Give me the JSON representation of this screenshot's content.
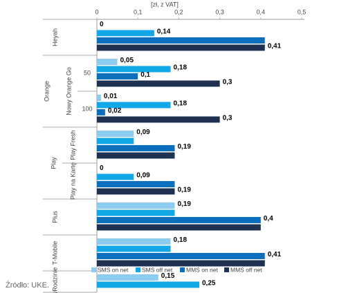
{
  "chart_data": {
    "type": "bar",
    "orientation": "horizontal",
    "x_label": "[zł, z VAT]",
    "categories": [
      "Heyah",
      "50",
      "100",
      "Play Fresh",
      "Play na Kartę",
      "Plus",
      "T-Mobile",
      "wRodzinie"
    ],
    "groups": [
      {
        "label": "Orange",
        "members": [
          1,
          2
        ]
      },
      {
        "label": "Nowy Orange Go",
        "members": [
          1,
          2
        ]
      },
      {
        "label": "Play",
        "members": [
          3,
          4
        ]
      }
    ],
    "series": [
      {
        "name": "SMS on net",
        "color": "#8ecbf0",
        "values": [
          0,
          0.05,
          0.01,
          0.09,
          0,
          0.19,
          0.18,
          0.15
        ],
        "value_labels": [
          "0",
          "0,05",
          "0,01",
          "0,09",
          "0",
          "0,19",
          "0,18",
          "0,15"
        ]
      },
      {
        "name": "SMS off net",
        "color": "#12a7e6",
        "values": [
          0.14,
          0.18,
          0.18,
          0.09,
          0.09,
          0.19,
          0.18,
          0.25
        ],
        "value_labels": [
          "0,14",
          "0,18",
          "0,18",
          null,
          "0,09",
          null,
          null,
          "0,25"
        ]
      },
      {
        "name": "MMS on net",
        "color": "#0c6fbd",
        "values": [
          0.41,
          0.1,
          0.02,
          0.19,
          0.19,
          0.4,
          0.41,
          null
        ],
        "value_labels": [
          null,
          "0,1",
          "0,02",
          "0,19",
          null,
          "0,4",
          "0,41",
          null
        ]
      },
      {
        "name": "MMS off net",
        "color": "#1f3150",
        "values": [
          0.41,
          0.3,
          0.3,
          0.19,
          0.19,
          0.4,
          0.41,
          null
        ],
        "value_labels": [
          "0,41",
          "0,3",
          "0,3",
          null,
          "0,19",
          null,
          null,
          null
        ]
      }
    ],
    "xlim": [
      0,
      0.5
    ],
    "xticks": [
      0,
      {
        "value": 0.1,
        "label": "0,1"
      },
      {
        "value": 0.2,
        "label": "0,2"
      },
      {
        "value": 0.3,
        "label": "0,3"
      },
      {
        "value": 0.4,
        "label": "0,4"
      },
      {
        "value": 0.5,
        "label": "0,5"
      }
    ],
    "grid": false,
    "legend": "bottom",
    "source": "Źródło: UKE."
  }
}
